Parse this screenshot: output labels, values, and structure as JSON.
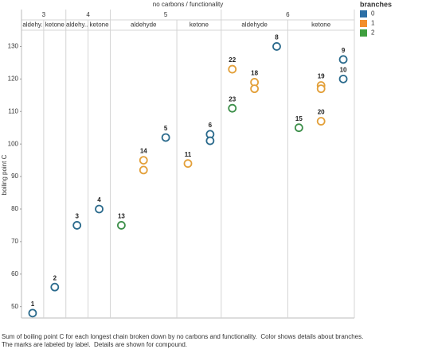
{
  "chart_data": {
    "type": "scatter",
    "title": "no carbons  /  functionality",
    "y_label": "boiling point C",
    "legend_title": "branches",
    "series": [
      {
        "name": "0",
        "color": "#2a6a8c"
      },
      {
        "name": "1",
        "color": "#e3a03a"
      },
      {
        "name": "2",
        "color": "#3d8f4a"
      }
    ],
    "legend_colors": [
      "#2c6fa6",
      "#f28e2b",
      "#3f9f3f"
    ],
    "ylim": [
      46.5,
      135
    ],
    "yticks": [
      50,
      60,
      70,
      80,
      90,
      100,
      110,
      120,
      130
    ],
    "grid": false,
    "groups": [
      {
        "label": "3",
        "columns": [
          {
            "name": "aldehy.",
            "slots": [
              [
                {
                  "value": 48,
                  "label": "1",
                  "branches": "0"
                }
              ]
            ]
          },
          {
            "name": "ketone",
            "slots": [
              [
                {
                  "value": 56,
                  "label": "2",
                  "branches": "0"
                }
              ]
            ]
          }
        ]
      },
      {
        "label": "4",
        "columns": [
          {
            "name": "aldehy..",
            "slots": [
              [
                {
                  "value": 75,
                  "label": "3",
                  "branches": "0"
                }
              ]
            ]
          },
          {
            "name": "ketone",
            "slots": [
              [
                {
                  "value": 80,
                  "label": "4",
                  "branches": "0"
                }
              ]
            ]
          }
        ]
      },
      {
        "label": "5",
        "columns": [
          {
            "name": "aldehyde",
            "slots": [
              [
                {
                  "value": 75,
                  "label": "13",
                  "branches": "2"
                }
              ],
              [
                {
                  "value": 95,
                  "label": "14",
                  "branches": "1"
                },
                {
                  "value": 92,
                  "label": null,
                  "branches": "1"
                }
              ],
              [
                {
                  "value": 102,
                  "label": "5",
                  "branches": "0"
                }
              ]
            ]
          },
          {
            "name": "ketone",
            "slots": [
              [
                {
                  "value": 94,
                  "label": "11",
                  "branches": "1"
                }
              ],
              [
                {
                  "value": 103,
                  "label": "6",
                  "branches": "0"
                },
                {
                  "value": 101,
                  "label": null,
                  "branches": "0"
                }
              ]
            ]
          }
        ]
      },
      {
        "label": "6",
        "columns": [
          {
            "name": "aldehyde",
            "slots": [
              [
                {
                  "value": 123,
                  "label": "22",
                  "branches": "1"
                },
                {
                  "value": 111,
                  "label": "23",
                  "branches": "2"
                }
              ],
              [
                {
                  "value": 119,
                  "label": "18",
                  "branches": "1"
                },
                {
                  "value": 117,
                  "label": null,
                  "branches": "1"
                }
              ],
              [
                {
                  "value": 130,
                  "label": "8",
                  "branches": "0"
                }
              ]
            ]
          },
          {
            "name": "ketone",
            "slots": [
              [
                {
                  "value": 105,
                  "label": "15",
                  "branches": "2"
                }
              ],
              [
                {
                  "value": 118,
                  "label": "19",
                  "branches": "1"
                },
                {
                  "value": 117,
                  "label": null,
                  "branches": "1"
                },
                {
                  "value": 107,
                  "label": "20",
                  "branches": "1"
                }
              ],
              [
                {
                  "value": 126,
                  "label": "9",
                  "branches": "0"
                },
                {
                  "value": 120,
                  "label": "10",
                  "branches": "0"
                }
              ]
            ]
          }
        ]
      }
    ],
    "caption": [
      "Sum of boiling point C for each longest chain broken down by no carbons and functionality.  Color shows details about branches.",
      "The marks are labeled by label.  Details are shown for compound."
    ]
  }
}
